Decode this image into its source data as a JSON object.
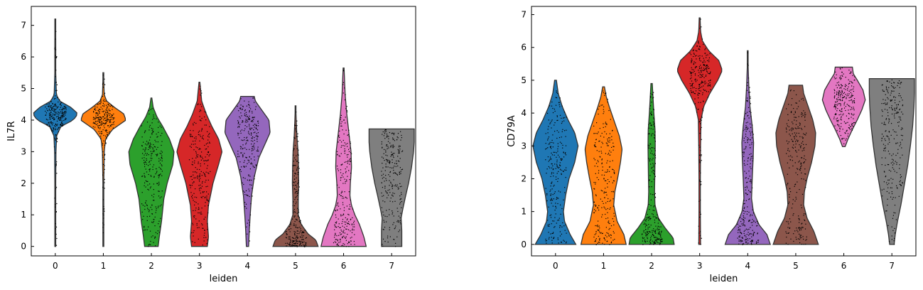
{
  "chart_data": [
    {
      "type": "violin",
      "xlabel": "leiden",
      "ylabel": "IL7R",
      "ylim": [
        -0.3,
        7.6
      ],
      "yticks": [
        0,
        1,
        2,
        3,
        4,
        5,
        6,
        7
      ],
      "categories": [
        "0",
        "1",
        "2",
        "3",
        "4",
        "5",
        "6",
        "7"
      ],
      "colors": [
        "#1f77b4",
        "#ff7f0e",
        "#2ca02c",
        "#d62728",
        "#9467bd",
        "#8c564b",
        "#e377c2",
        "#7f7f7f"
      ],
      "groups": [
        {
          "name": "0",
          "min": 0,
          "max": 7.2,
          "profile": [
            [
              0,
              0.02
            ],
            [
              1,
              0.02
            ],
            [
              2,
              0.02
            ],
            [
              3,
              0.03
            ],
            [
              3.5,
              0.06
            ],
            [
              3.8,
              0.25
            ],
            [
              4.0,
              0.8
            ],
            [
              4.2,
              1.0
            ],
            [
              4.4,
              0.7
            ],
            [
              4.6,
              0.2
            ],
            [
              4.8,
              0.05
            ],
            [
              5.5,
              0.02
            ],
            [
              6.5,
              0.02
            ],
            [
              7.2,
              0.01
            ]
          ]
        },
        {
          "name": "1",
          "min": 0,
          "max": 5.5,
          "profile": [
            [
              0,
              0.02
            ],
            [
              1,
              0.02
            ],
            [
              2,
              0.02
            ],
            [
              3,
              0.04
            ],
            [
              3.4,
              0.1
            ],
            [
              3.7,
              0.4
            ],
            [
              4.0,
              1.0
            ],
            [
              4.2,
              0.9
            ],
            [
              4.4,
              0.5
            ],
            [
              4.6,
              0.15
            ],
            [
              4.8,
              0.04
            ],
            [
              5.0,
              0.03
            ],
            [
              5.5,
              0.01
            ]
          ]
        },
        {
          "name": "2",
          "min": 0,
          "max": 4.7,
          "profile": [
            [
              0,
              0.3
            ],
            [
              0.3,
              0.35
            ],
            [
              0.8,
              0.45
            ],
            [
              1.5,
              0.55
            ],
            [
              2.0,
              0.7
            ],
            [
              2.6,
              0.95
            ],
            [
              3.0,
              1.0
            ],
            [
              3.4,
              0.8
            ],
            [
              3.8,
              0.5
            ],
            [
              4.1,
              0.25
            ],
            [
              4.4,
              0.08
            ],
            [
              4.7,
              0.02
            ]
          ]
        },
        {
          "name": "3",
          "min": 0,
          "max": 5.2,
          "profile": [
            [
              0,
              0.35
            ],
            [
              0.3,
              0.4
            ],
            [
              0.8,
              0.35
            ],
            [
              1.3,
              0.4
            ],
            [
              2.0,
              0.6
            ],
            [
              2.6,
              0.85
            ],
            [
              3.0,
              1.0
            ],
            [
              3.4,
              0.85
            ],
            [
              3.8,
              0.55
            ],
            [
              4.2,
              0.3
            ],
            [
              4.6,
              0.1
            ],
            [
              5.2,
              0.02
            ]
          ]
        },
        {
          "name": "4",
          "min": 0,
          "max": 4.75,
          "profile": [
            [
              0,
              0.05
            ],
            [
              0.5,
              0.08
            ],
            [
              1.0,
              0.12
            ],
            [
              1.6,
              0.18
            ],
            [
              2.2,
              0.3
            ],
            [
              2.8,
              0.5
            ],
            [
              3.2,
              0.75
            ],
            [
              3.6,
              1.0
            ],
            [
              4.0,
              0.95
            ],
            [
              4.3,
              0.65
            ],
            [
              4.6,
              0.35
            ],
            [
              4.75,
              0.3
            ]
          ]
        },
        {
          "name": "5",
          "min": 0,
          "max": 4.45,
          "profile": [
            [
              0,
              1.0
            ],
            [
              0.2,
              0.9
            ],
            [
              0.4,
              0.55
            ],
            [
              0.7,
              0.25
            ],
            [
              1.0,
              0.12
            ],
            [
              1.5,
              0.12
            ],
            [
              2.0,
              0.14
            ],
            [
              2.5,
              0.13
            ],
            [
              3.0,
              0.11
            ],
            [
              3.5,
              0.06
            ],
            [
              4.0,
              0.03
            ],
            [
              4.45,
              0.01
            ]
          ]
        },
        {
          "name": "6",
          "min": 0,
          "max": 5.65,
          "profile": [
            [
              0,
              1.0
            ],
            [
              0.3,
              0.9
            ],
            [
              0.7,
              0.7
            ],
            [
              1.0,
              0.5
            ],
            [
              1.3,
              0.35
            ],
            [
              1.6,
              0.28
            ],
            [
              2.0,
              0.3
            ],
            [
              2.5,
              0.35
            ],
            [
              3.0,
              0.33
            ],
            [
              3.5,
              0.25
            ],
            [
              4.2,
              0.14
            ],
            [
              4.8,
              0.07
            ],
            [
              5.65,
              0.02
            ]
          ]
        },
        {
          "name": "7",
          "min": 0,
          "max": 3.72,
          "profile": [
            [
              0,
              0.45
            ],
            [
              0.5,
              0.45
            ],
            [
              0.9,
              0.42
            ],
            [
              1.2,
              0.5
            ],
            [
              1.6,
              0.62
            ],
            [
              2.0,
              0.75
            ],
            [
              2.5,
              0.88
            ],
            [
              3.0,
              0.97
            ],
            [
              3.3,
              1.0
            ],
            [
              3.5,
              1.0
            ],
            [
              3.72,
              1.0
            ]
          ]
        }
      ]
    },
    {
      "type": "violin",
      "xlabel": "leiden",
      "ylabel": "CD79A",
      "ylim": [
        -0.35,
        7.25
      ],
      "yticks": [
        0,
        1,
        2,
        3,
        4,
        5,
        6,
        7
      ],
      "categories": [
        "0",
        "1",
        "2",
        "3",
        "4",
        "5",
        "6",
        "7"
      ],
      "colors": [
        "#1f77b4",
        "#ff7f0e",
        "#2ca02c",
        "#d62728",
        "#9467bd",
        "#8c564b",
        "#e377c2",
        "#7f7f7f"
      ],
      "groups": [
        {
          "name": "0",
          "min": 0,
          "max": 5.0,
          "profile": [
            [
              0,
              0.9
            ],
            [
              0.3,
              0.65
            ],
            [
              0.7,
              0.4
            ],
            [
              1.0,
              0.35
            ],
            [
              1.5,
              0.45
            ],
            [
              2.0,
              0.6
            ],
            [
              2.5,
              0.85
            ],
            [
              3.0,
              1.0
            ],
            [
              3.4,
              0.85
            ],
            [
              3.8,
              0.55
            ],
            [
              4.2,
              0.3
            ],
            [
              4.6,
              0.12
            ],
            [
              5.0,
              0.04
            ]
          ]
        },
        {
          "name": "1",
          "min": 0,
          "max": 4.8,
          "profile": [
            [
              0,
              1.0
            ],
            [
              0.3,
              0.9
            ],
            [
              0.7,
              0.6
            ],
            [
              1.2,
              0.45
            ],
            [
              1.6,
              0.5
            ],
            [
              2.0,
              0.62
            ],
            [
              2.5,
              0.75
            ],
            [
              2.9,
              0.82
            ],
            [
              3.3,
              0.7
            ],
            [
              3.8,
              0.45
            ],
            [
              4.2,
              0.25
            ],
            [
              4.5,
              0.12
            ],
            [
              4.8,
              0.04
            ]
          ]
        },
        {
          "name": "2",
          "min": 0,
          "max": 4.9,
          "profile": [
            [
              0,
              1.0
            ],
            [
              0.2,
              0.95
            ],
            [
              0.5,
              0.6
            ],
            [
              0.8,
              0.3
            ],
            [
              1.2,
              0.15
            ],
            [
              1.6,
              0.13
            ],
            [
              2.0,
              0.14
            ],
            [
              2.5,
              0.15
            ],
            [
              3.0,
              0.16
            ],
            [
              3.5,
              0.15
            ],
            [
              4.0,
              0.1
            ],
            [
              4.5,
              0.06
            ],
            [
              4.9,
              0.03
            ]
          ]
        },
        {
          "name": "3",
          "min": 0,
          "max": 6.9,
          "profile": [
            [
              0,
              0.04
            ],
            [
              1,
              0.03
            ],
            [
              2,
              0.03
            ],
            [
              3,
              0.04
            ],
            [
              3.8,
              0.06
            ],
            [
              4.2,
              0.18
            ],
            [
              4.6,
              0.45
            ],
            [
              5.0,
              0.8
            ],
            [
              5.3,
              1.0
            ],
            [
              5.6,
              0.85
            ],
            [
              5.9,
              0.4
            ],
            [
              6.2,
              0.12
            ],
            [
              6.5,
              0.04
            ],
            [
              6.9,
              0.02
            ]
          ]
        },
        {
          "name": "4",
          "min": 0,
          "max": 5.9,
          "profile": [
            [
              0,
              1.0
            ],
            [
              0.3,
              0.85
            ],
            [
              0.6,
              0.5
            ],
            [
              1.0,
              0.25
            ],
            [
              1.4,
              0.17
            ],
            [
              2.0,
              0.2
            ],
            [
              2.6,
              0.24
            ],
            [
              3.1,
              0.26
            ],
            [
              3.6,
              0.2
            ],
            [
              4.2,
              0.1
            ],
            [
              4.8,
              0.05
            ],
            [
              5.4,
              0.02
            ],
            [
              5.9,
              0.01
            ]
          ]
        },
        {
          "name": "5",
          "min": 0,
          "max": 4.85,
          "profile": [
            [
              0,
              1.0
            ],
            [
              0.4,
              0.8
            ],
            [
              0.8,
              0.5
            ],
            [
              1.2,
              0.35
            ],
            [
              1.6,
              0.38
            ],
            [
              2.0,
              0.5
            ],
            [
              2.5,
              0.7
            ],
            [
              3.0,
              0.85
            ],
            [
              3.4,
              0.88
            ],
            [
              3.8,
              0.75
            ],
            [
              4.2,
              0.55
            ],
            [
              4.6,
              0.35
            ],
            [
              4.85,
              0.3
            ]
          ]
        },
        {
          "name": "6",
          "min": 2.98,
          "max": 5.4,
          "profile": [
            [
              2.98,
              0.06
            ],
            [
              3.2,
              0.18
            ],
            [
              3.5,
              0.38
            ],
            [
              3.8,
              0.6
            ],
            [
              4.1,
              0.8
            ],
            [
              4.4,
              0.95
            ],
            [
              4.7,
              0.85
            ],
            [
              5.0,
              0.6
            ],
            [
              5.2,
              0.42
            ],
            [
              5.4,
              0.38
            ]
          ]
        },
        {
          "name": "7",
          "min": 0,
          "max": 5.05,
          "profile": [
            [
              0,
              0.1
            ],
            [
              0.3,
              0.15
            ],
            [
              0.7,
              0.25
            ],
            [
              1.2,
              0.4
            ],
            [
              1.8,
              0.55
            ],
            [
              2.4,
              0.7
            ],
            [
              3.0,
              0.82
            ],
            [
              3.6,
              0.92
            ],
            [
              4.2,
              0.98
            ],
            [
              4.6,
              1.0
            ],
            [
              5.05,
              1.0
            ]
          ]
        }
      ]
    }
  ]
}
